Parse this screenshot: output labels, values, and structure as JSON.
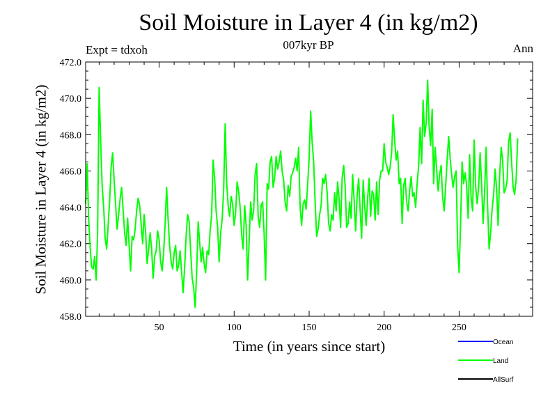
{
  "chart_data": {
    "type": "line",
    "title": "Soil Moisture in Layer 4 (in kg/m2)",
    "subtitle": "007kyr BP",
    "experiment": "Expt = tdxoh",
    "season": "Ann",
    "xlabel": "Time (in years since start)",
    "ylabel": "Soil Moisture in Layer 4 (in kg/m2)",
    "xlim": [
      1,
      299
    ],
    "ylim": [
      458.0,
      472.0
    ],
    "x_ticks": [
      50,
      100,
      150,
      200,
      250
    ],
    "y_ticks": [
      458,
      460,
      462,
      464,
      466,
      468,
      470,
      472
    ],
    "y_tick_labels": [
      "458.0",
      "460.0",
      "462.0",
      "464.0",
      "466.0",
      "468.0",
      "470.0",
      "472.0"
    ],
    "x_start": 1,
    "x_step": 1,
    "series": [
      {
        "name": "Land",
        "color": "#00ff00",
        "values": [
          464.2,
          466.4,
          463.4,
          461.8,
          460.7,
          460.6,
          461.3,
          460.0,
          462.6,
          470.6,
          467.8,
          465.2,
          464.0,
          462.3,
          461.7,
          463.0,
          464.4,
          466.2,
          467.0,
          465.5,
          464.1,
          462.8,
          463.6,
          464.5,
          465.1,
          463.8,
          462.6,
          461.9,
          463.4,
          461.9,
          460.5,
          462.4,
          462.2,
          462.8,
          463.8,
          464.5,
          464.1,
          463.1,
          462.0,
          463.6,
          462.6,
          460.9,
          461.7,
          462.6,
          461.7,
          460.1,
          461.3,
          461.6,
          462.7,
          462.2,
          461.0,
          460.5,
          461.5,
          463.1,
          465.1,
          463.3,
          461.9,
          461.0,
          460.6,
          461.5,
          461.9,
          460.5,
          460.8,
          461.6,
          460.4,
          459.3,
          460.7,
          462.4,
          463.6,
          463.2,
          461.6,
          460.1,
          459.6,
          458.5,
          460.4,
          463.2,
          462.1,
          461.0,
          461.8,
          460.9,
          460.4,
          461.6,
          461.4,
          462.7,
          463.6,
          466.6,
          465.6,
          463.8,
          462.9,
          461.0,
          462.6,
          463.3,
          464.9,
          468.6,
          465.4,
          464.1,
          463.5,
          464.6,
          464.2,
          463.0,
          463.7,
          465.4,
          464.9,
          464.0,
          462.5,
          461.7,
          464.1,
          463.0,
          460.0,
          462.1,
          464.3,
          463.3,
          463.8,
          465.8,
          466.4,
          463.5,
          462.9,
          464.1,
          464.3,
          462.5,
          460.0,
          465.3,
          465.0,
          466.5,
          466.8,
          465.1,
          465.6,
          466.8,
          466.1,
          466.5,
          467.1,
          466.0,
          465.5,
          464.3,
          463.8,
          465.2,
          464.6,
          465.7,
          465.9,
          466.2,
          466.7,
          466.0,
          467.3,
          464.0,
          463.0,
          464.2,
          464.4,
          463.9,
          465.2,
          466.7,
          469.3,
          467.6,
          466.5,
          464.3,
          462.4,
          462.8,
          463.6,
          464.1,
          465.6,
          465.3,
          465.8,
          464.8,
          463.1,
          462.7,
          463.6,
          463.3,
          464.8,
          463.8,
          465.4,
          464.4,
          462.9,
          465.6,
          466.3,
          465.2,
          462.9,
          463.1,
          464.3,
          463.4,
          465.8,
          464.4,
          462.7,
          464.6,
          465.6,
          463.9,
          462.3,
          465.5,
          464.1,
          463.0,
          464.5,
          465.6,
          463.5,
          464.9,
          464.7,
          463.3,
          465.4,
          463.6,
          465.5,
          466.0,
          466.0,
          467.5,
          466.5,
          466.2,
          465.8,
          466.2,
          467.0,
          469.1,
          467.7,
          466.6,
          467.1,
          465.3,
          465.6,
          463.1,
          465.2,
          465.6,
          464.3,
          463.8,
          464.9,
          465.7,
          464.6,
          464.8,
          464.0,
          465.3,
          466.3,
          468.4,
          466.4,
          469.9,
          467.9,
          468.6,
          471.0,
          468.5,
          467.4,
          469.4,
          465.3,
          467.3,
          466.1,
          464.9,
          465.8,
          466.3,
          464.6,
          463.8,
          465.1,
          466.6,
          467.9,
          466.7,
          465.8,
          465.1,
          465.7,
          466.0,
          461.9,
          460.4,
          463.2,
          466.5,
          465.3,
          465.9,
          465.2,
          463.4,
          466.9,
          464.5,
          463.8,
          467.7,
          465.2,
          464.2,
          465.1,
          467.0,
          465.2,
          463.1,
          464.9,
          467.3,
          464.0,
          461.7,
          462.6,
          463.9,
          464.7,
          466.1,
          465.0,
          463.0,
          465.7,
          467.3,
          466.6,
          464.8,
          465.0,
          465.5,
          467.6,
          468.1,
          466.5,
          465.1,
          464.7,
          465.5,
          467.8
        ]
      }
    ]
  },
  "legend": [
    {
      "label": "Ocean",
      "color": "#0000ff"
    },
    {
      "label": "Land",
      "color": "#00ff00"
    },
    {
      "label": "AllSurf",
      "color": "#000000"
    }
  ]
}
